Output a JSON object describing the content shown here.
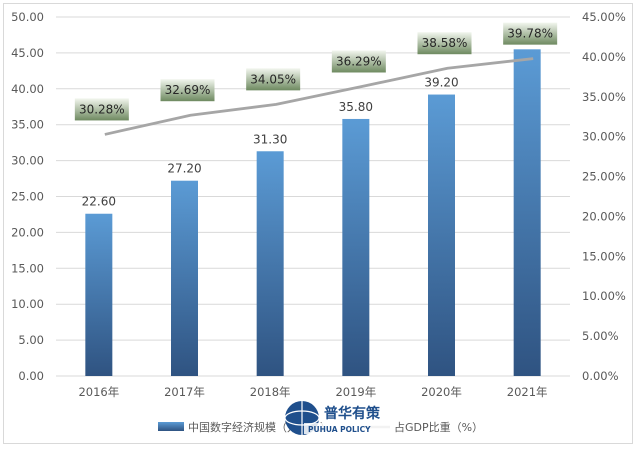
{
  "chart_data": {
    "type": "bar+line",
    "categories": [
      "2016年",
      "2017年",
      "2018年",
      "2019年",
      "2020年",
      "2021年"
    ],
    "series": [
      {
        "name": "中国数字经济规模（万亿元）",
        "type": "bar",
        "axis": "left",
        "values": [
          22.6,
          27.2,
          31.3,
          35.8,
          39.2,
          45.5
        ],
        "value_labels": [
          "22.60",
          "27.20",
          "31.30",
          "35.80",
          "39.20",
          ""
        ]
      },
      {
        "name": "占GDP比重（%）",
        "type": "line",
        "axis": "right",
        "values": [
          30.28,
          32.69,
          34.05,
          36.29,
          38.58,
          39.78
        ],
        "value_labels": [
          "30.28%",
          "32.69%",
          "34.05%",
          "36.29%",
          "38.58%",
          "39.78%"
        ]
      }
    ],
    "left_axis": {
      "range": [
        0,
        50
      ],
      "ticks": [
        "0.00",
        "5.00",
        "10.00",
        "15.00",
        "20.00",
        "25.00",
        "30.00",
        "35.00",
        "40.00",
        "45.00",
        "50.00"
      ]
    },
    "right_axis": {
      "range": [
        0,
        45
      ],
      "ticks": [
        "0.00%",
        "5.00%",
        "10.00%",
        "15.00%",
        "20.00%",
        "25.00%",
        "30.00%",
        "35.00%",
        "40.00%",
        "45.00%"
      ]
    },
    "gridlines": true,
    "legend": {
      "position": "bottom",
      "bar_label": "中国数字经济规模（万亿元）",
      "line_label": "占GDP比重（%）"
    },
    "colors": {
      "bar_top": "#5b9bd5",
      "bar_bottom": "#2f5381",
      "line": "#a6a6a6",
      "label_box_top": "#f2f6ee",
      "label_box_bottom": "#6e8a60",
      "grid": "#d9d9d9"
    }
  },
  "watermark": {
    "cn_text": "普华有策",
    "en_text": "PUHUA POLICY"
  }
}
